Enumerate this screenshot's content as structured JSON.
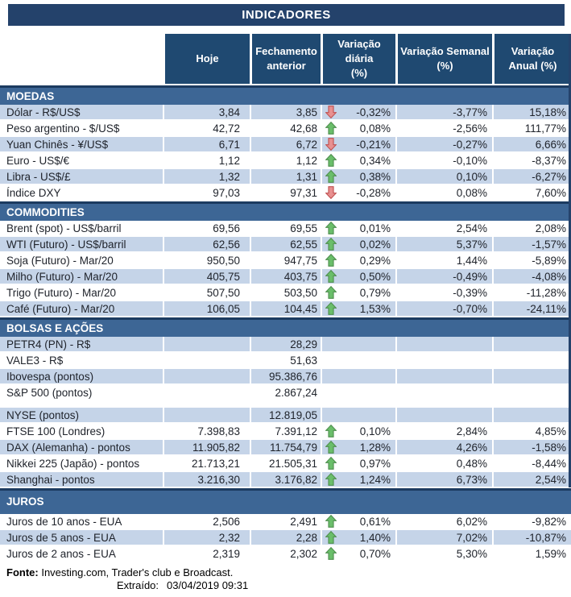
{
  "chart_data": {
    "type": "table",
    "title": "INDICADORES",
    "columns": [
      "Hoje",
      "Fechamento\nanterior",
      "Variação diária\n(%)",
      "Variação Semanal\n(%)",
      "Variação\nAnual (%)"
    ],
    "sections": [
      {
        "name": "MOEDAS",
        "start_shade": "blue",
        "rows": [
          {
            "label": "Dólar - R$/US$",
            "hoje": "3,84",
            "fechamento": "3,85",
            "arrow": "down",
            "var_diaria": "-0,32%",
            "var_semanal": "-3,77%",
            "var_anual": "15,18%"
          },
          {
            "label": "Peso argentino - $/US$",
            "hoje": "42,72",
            "fechamento": "42,68",
            "arrow": "up",
            "var_diaria": "0,08%",
            "var_semanal": "-2,56%",
            "var_anual": "111,77%"
          },
          {
            "label": "Yuan Chinês - ¥/US$",
            "hoje": "6,71",
            "fechamento": "6,72",
            "arrow": "down",
            "var_diaria": "-0,21%",
            "var_semanal": "-0,27%",
            "var_anual": "6,66%"
          },
          {
            "label": "Euro - US$/€",
            "hoje": "1,12",
            "fechamento": "1,12",
            "arrow": "up",
            "var_diaria": "0,34%",
            "var_semanal": "-0,10%",
            "var_anual": "-8,37%"
          },
          {
            "label": "Libra - US$/£",
            "hoje": "1,32",
            "fechamento": "1,31",
            "arrow": "up",
            "var_diaria": "0,38%",
            "var_semanal": "0,10%",
            "var_anual": "-6,27%"
          },
          {
            "label": "Índice DXY",
            "hoje": "97,03",
            "fechamento": "97,31",
            "arrow": "down",
            "var_diaria": "-0,28%",
            "var_semanal": "0,08%",
            "var_anual": "7,60%"
          }
        ]
      },
      {
        "name": "COMMODITIES",
        "start_shade": "white",
        "rows": [
          {
            "label": "Brent (spot) - US$/barril",
            "hoje": "69,56",
            "fechamento": "69,55",
            "arrow": "up",
            "var_diaria": "0,01%",
            "var_semanal": "2,54%",
            "var_anual": "2,08%"
          },
          {
            "label": "WTI (Futuro) - US$/barril",
            "hoje": "62,56",
            "fechamento": "62,55",
            "arrow": "up",
            "var_diaria": "0,02%",
            "var_semanal": "5,37%",
            "var_anual": "-1,57%"
          },
          {
            "label": "Soja (Futuro) - Mar/20",
            "hoje": "950,50",
            "fechamento": "947,75",
            "arrow": "up",
            "var_diaria": "0,29%",
            "var_semanal": "1,44%",
            "var_anual": "-5,89%"
          },
          {
            "label": "Milho (Futuro) - Mar/20",
            "hoje": "405,75",
            "fechamento": "403,75",
            "arrow": "up",
            "var_diaria": "0,50%",
            "var_semanal": "-0,49%",
            "var_anual": "-4,08%"
          },
          {
            "label": "Trigo (Futuro) - Mar/20",
            "hoje": "507,50",
            "fechamento": "503,50",
            "arrow": "up",
            "var_diaria": "0,79%",
            "var_semanal": "-0,39%",
            "var_anual": "-11,28%"
          },
          {
            "label": "Café (Futuro) - Mar/20",
            "hoje": "106,05",
            "fechamento": "104,45",
            "arrow": "up",
            "var_diaria": "1,53%",
            "var_semanal": "-0,70%",
            "var_anual": "-24,11%"
          }
        ]
      },
      {
        "name": "BOLSAS E AÇÕES",
        "start_shade": "blue",
        "rows": [
          {
            "label": "PETR4 (PN) - R$",
            "hoje": "",
            "fechamento": "28,29",
            "arrow": "",
            "var_diaria": "",
            "var_semanal": "",
            "var_anual": ""
          },
          {
            "label": "VALE3 - R$",
            "hoje": "",
            "fechamento": "51,63",
            "arrow": "",
            "var_diaria": "",
            "var_semanal": "",
            "var_anual": ""
          },
          {
            "label": "Ibovespa (pontos)",
            "hoje": "",
            "fechamento": "95.386,76",
            "arrow": "",
            "var_diaria": "",
            "var_semanal": "",
            "var_anual": ""
          },
          {
            "label": "S&P 500 (pontos)",
            "hoje": "",
            "fechamento": "2.867,24",
            "arrow": "",
            "var_diaria": "",
            "var_semanal": "",
            "var_anual": ""
          },
          {
            "type": "spacer"
          },
          {
            "label": "NYSE (pontos)",
            "hoje": "",
            "fechamento": "12.819,05",
            "arrow": "",
            "var_diaria": "",
            "var_semanal": "",
            "var_anual": ""
          },
          {
            "label": "FTSE 100 (Londres)",
            "hoje": "7.398,83",
            "fechamento": "7.391,12",
            "arrow": "up",
            "var_diaria": "0,10%",
            "var_semanal": "2,84%",
            "var_anual": "4,85%"
          },
          {
            "label": "DAX (Alemanha) - pontos",
            "hoje": "11.905,82",
            "fechamento": "11.754,79",
            "arrow": "up",
            "var_diaria": "1,28%",
            "var_semanal": "4,26%",
            "var_anual": "-1,58%"
          },
          {
            "label": "Nikkei 225 (Japão) - pontos",
            "hoje": "21.713,21",
            "fechamento": "21.505,31",
            "arrow": "up",
            "var_diaria": "0,97%",
            "var_semanal": "0,48%",
            "var_anual": "-8,44%"
          },
          {
            "label": "Shanghai - pontos",
            "hoje": "3.216,30",
            "fechamento": "3.176,82",
            "arrow": "up",
            "var_diaria": "1,24%",
            "var_semanal": "6,73%",
            "var_anual": "2,54%"
          }
        ]
      },
      {
        "name": "JUROS",
        "tall": true,
        "start_shade": "white",
        "rows": [
          {
            "label": "Juros de 10 anos - EUA",
            "hoje": "2,506",
            "fechamento": "2,491",
            "arrow": "up",
            "var_diaria": "0,61%",
            "var_semanal": "6,02%",
            "var_anual": "-9,82%"
          },
          {
            "label": "Juros de 5 anos - EUA",
            "hoje": "2,32",
            "fechamento": "2,28",
            "arrow": "up",
            "var_diaria": "1,40%",
            "var_semanal": "7,02%",
            "var_anual": "-10,87%"
          },
          {
            "label": "Juros de 2 anos - EUA",
            "hoje": "2,319",
            "fechamento": "2,302",
            "arrow": "up",
            "var_diaria": "0,70%",
            "var_semanal": "5,30%",
            "var_anual": "1,59%"
          }
        ]
      }
    ]
  },
  "footer": {
    "fonte_label": "Fonte:",
    "fonte_text": "Investing.com, Trader's club e Broadcast.",
    "extraido_label": "Extraído:",
    "extraido_value": "03/04/2019 09:31"
  },
  "icons": {
    "up": "up-arrow-icon",
    "down": "down-arrow-icon"
  },
  "colors": {
    "title-bar": "#24426B",
    "header-bg": "#1F4971",
    "section-bg": "#3D6695",
    "section-border": "#1C3B60",
    "row-blue": "#C5D4E8",
    "text-dark": "#20242C",
    "up-fill": "#6ABE6A",
    "up-stroke": "#4F8F4F",
    "down-fill": "#E89090",
    "down-stroke": "#C05050",
    "side-border": "#24426B"
  }
}
